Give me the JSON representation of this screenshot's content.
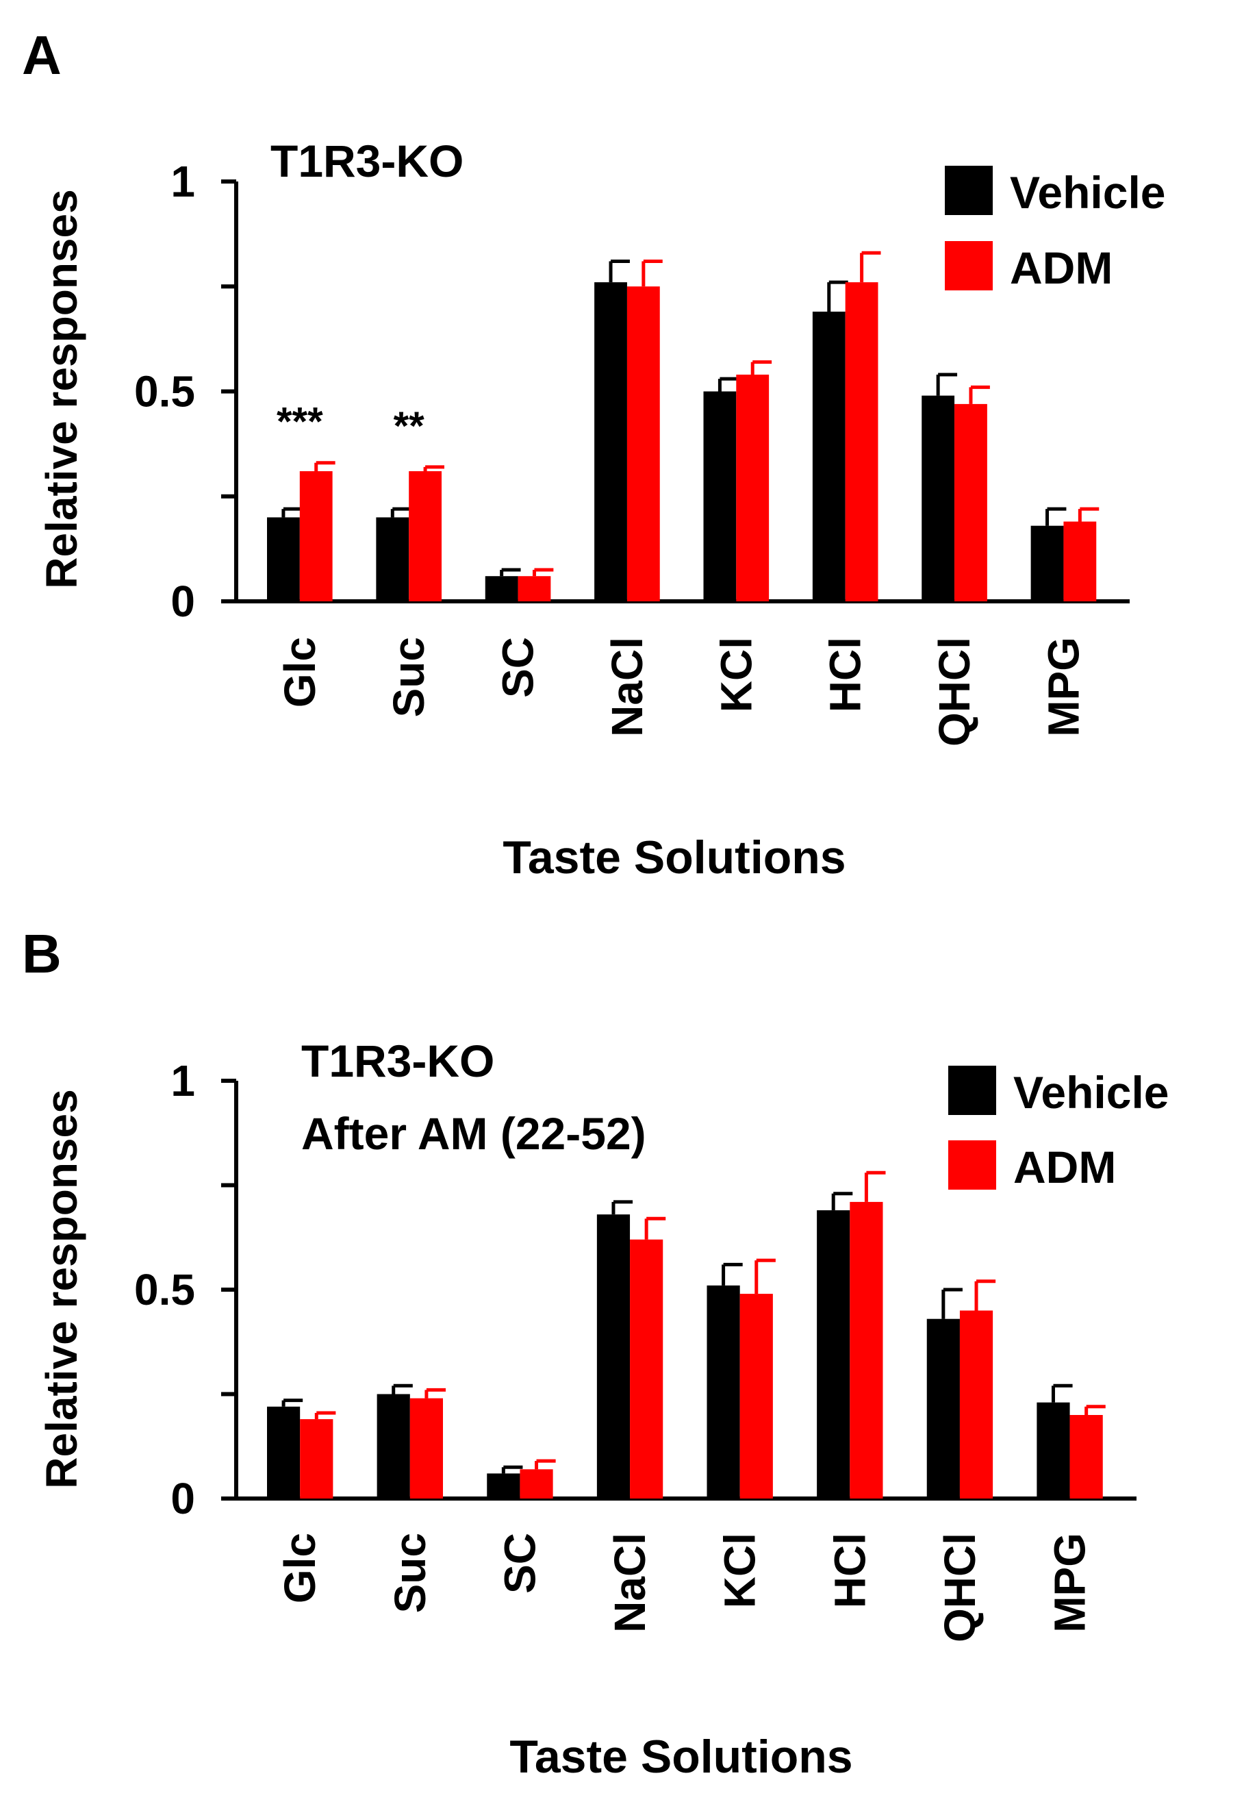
{
  "chart_data": [
    {
      "panel": "A",
      "type": "bar",
      "title": "T1R3-KO",
      "subtitle": "",
      "xlabel": "Taste Solutions",
      "ylabel": "Relative responses",
      "ylim": [
        0,
        1
      ],
      "yticks": [
        0,
        0.25,
        0.5,
        0.75,
        1
      ],
      "ytick_labels": [
        "0",
        "",
        "0.5",
        "",
        "1"
      ],
      "categories": [
        "Glc",
        "Suc",
        "SC",
        "NaCl",
        "KCl",
        "HCl",
        "QHCl",
        "MPG"
      ],
      "series": [
        {
          "name": "Vehicle",
          "color": "#000000",
          "values": [
            0.2,
            0.2,
            0.06,
            0.76,
            0.5,
            0.69,
            0.49,
            0.18
          ],
          "errors": [
            0.02,
            0.02,
            0.015,
            0.05,
            0.03,
            0.07,
            0.05,
            0.04
          ]
        },
        {
          "name": "ADM",
          "color": "#ff0000",
          "values": [
            0.31,
            0.31,
            0.06,
            0.75,
            0.54,
            0.76,
            0.47,
            0.19
          ],
          "errors": [
            0.02,
            0.01,
            0.015,
            0.06,
            0.03,
            0.07,
            0.04,
            0.03
          ]
        }
      ],
      "annotations": [
        {
          "category": "Glc",
          "text": "***"
        },
        {
          "category": "Suc",
          "text": "**"
        }
      ],
      "legend": "top-right",
      "grid": false
    },
    {
      "panel": "B",
      "type": "bar",
      "title": "T1R3-KO",
      "subtitle": "After AM (22-52)",
      "xlabel": "Taste Solutions",
      "ylabel": "Relative responses",
      "ylim": [
        0,
        1
      ],
      "yticks": [
        0,
        0.25,
        0.5,
        0.75,
        1
      ],
      "ytick_labels": [
        "0",
        "",
        "0.5",
        "",
        "1"
      ],
      "categories": [
        "Glc",
        "Suc",
        "SC",
        "NaCl",
        "KCl",
        "HCl",
        "QHCl",
        "MPG"
      ],
      "series": [
        {
          "name": "Vehicle",
          "color": "#000000",
          "values": [
            0.22,
            0.25,
            0.06,
            0.68,
            0.51,
            0.69,
            0.43,
            0.23
          ],
          "errors": [
            0.015,
            0.02,
            0.015,
            0.03,
            0.05,
            0.04,
            0.07,
            0.04
          ]
        },
        {
          "name": "ADM",
          "color": "#ff0000",
          "values": [
            0.19,
            0.24,
            0.07,
            0.62,
            0.49,
            0.71,
            0.45,
            0.2
          ],
          "errors": [
            0.015,
            0.02,
            0.02,
            0.05,
            0.08,
            0.07,
            0.07,
            0.02
          ]
        }
      ],
      "annotations": [],
      "legend": "top-right",
      "grid": false
    }
  ]
}
